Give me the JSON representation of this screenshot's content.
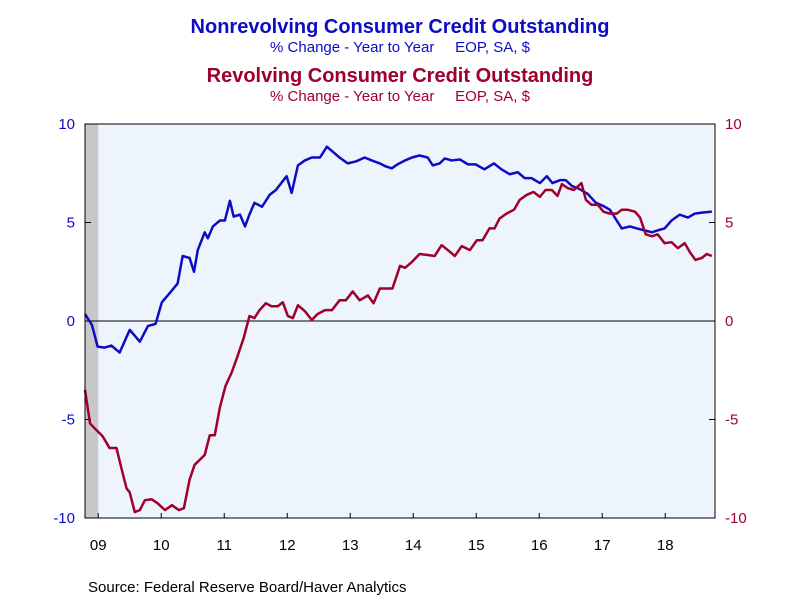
{
  "chart_data": {
    "type": "line",
    "source": "Source:  Federal Reserve Board/Haver Analytics",
    "xlim": [
      2009.29,
      2019.29
    ],
    "xticks": [
      {
        "value": 2009.5,
        "label": "09"
      },
      {
        "value": 2010.5,
        "label": "10"
      },
      {
        "value": 2011.5,
        "label": "11"
      },
      {
        "value": 2012.5,
        "label": "12"
      },
      {
        "value": 2013.5,
        "label": "13"
      },
      {
        "value": 2014.5,
        "label": "14"
      },
      {
        "value": 2015.5,
        "label": "15"
      },
      {
        "value": 2016.5,
        "label": "16"
      },
      {
        "value": 2017.5,
        "label": "17"
      },
      {
        "value": 2018.5,
        "label": "18"
      }
    ],
    "ylim": [
      -10,
      10
    ],
    "yticks": [
      -10,
      -5,
      0,
      5,
      10
    ],
    "y2lim": [
      -10,
      10
    ],
    "y2ticks": [
      -10,
      -5,
      0,
      5,
      10
    ],
    "zero_line": true,
    "shaded_regions": [
      [
        2009.29,
        2009.5
      ]
    ],
    "series": [
      {
        "name": "Nonrevolving Consumer Credit Outstanding",
        "subtitle": "% Change - Year to Year     EOP, SA, $",
        "color": "#0c0cc4",
        "axis": "y",
        "x": [
          2009.29,
          2009.4,
          2009.49,
          2009.6,
          2009.71,
          2009.84,
          2010.0,
          2010.16,
          2010.29,
          2010.41,
          2010.51,
          2010.63,
          2010.76,
          2010.84,
          2010.95,
          2011.02,
          2011.08,
          2011.19,
          2011.24,
          2011.32,
          2011.43,
          2011.51,
          2011.59,
          2011.65,
          2011.75,
          2011.83,
          2011.9,
          2011.98,
          2012.1,
          2012.22,
          2012.32,
          2012.49,
          2012.57,
          2012.67,
          2012.78,
          2012.89,
          2013.02,
          2013.13,
          2013.22,
          2013.33,
          2013.46,
          2013.59,
          2013.73,
          2013.84,
          2013.97,
          2014.06,
          2014.16,
          2014.25,
          2014.37,
          2014.48,
          2014.6,
          2014.73,
          2014.81,
          2014.92,
          2015.0,
          2015.11,
          2015.24,
          2015.37,
          2015.49,
          2015.63,
          2015.78,
          2015.9,
          2016.03,
          2016.16,
          2016.27,
          2016.38,
          2016.51,
          2016.62,
          2016.71,
          2016.83,
          2016.92,
          2017.02,
          2017.14,
          2017.27,
          2017.4,
          2017.51,
          2017.62,
          2017.7,
          2017.81,
          2017.94,
          2018.05,
          2018.17,
          2018.29,
          2018.38,
          2018.49,
          2018.6,
          2018.73,
          2018.86,
          2018.97,
          2019.08,
          2019.24
        ],
        "values": [
          0.35,
          -0.2,
          -1.3,
          -1.35,
          -1.25,
          -1.6,
          -0.45,
          -1.05,
          -0.25,
          -0.15,
          0.95,
          1.4,
          1.9,
          3.3,
          3.2,
          2.5,
          3.6,
          4.5,
          4.2,
          4.8,
          5.1,
          5.1,
          6.1,
          5.3,
          5.4,
          4.8,
          5.4,
          6.0,
          5.8,
          6.4,
          6.65,
          7.35,
          6.5,
          7.9,
          8.15,
          8.3,
          8.3,
          8.85,
          8.6,
          8.3,
          8.0,
          8.1,
          8.3,
          8.15,
          8.0,
          7.85,
          7.75,
          7.95,
          8.15,
          8.3,
          8.4,
          8.3,
          7.9,
          8.0,
          8.25,
          8.15,
          8.2,
          7.95,
          7.95,
          7.7,
          8.0,
          7.7,
          7.45,
          7.55,
          7.25,
          7.25,
          7.0,
          7.35,
          7.0,
          7.15,
          7.15,
          6.85,
          6.7,
          6.45,
          6.0,
          5.85,
          5.65,
          5.25,
          4.7,
          4.8,
          4.7,
          4.6,
          4.5,
          4.6,
          4.7,
          5.1,
          5.4,
          5.25,
          5.45,
          5.5,
          5.55
        ]
      },
      {
        "name": "Revolving Consumer Credit Outstanding",
        "subtitle": "% Change - Year to Year     EOP, SA, $",
        "color": "#a0002c",
        "axis": "y2",
        "x": [
          2009.29,
          2009.37,
          2009.46,
          2009.57,
          2009.68,
          2009.79,
          2009.87,
          2009.95,
          2010.0,
          2010.08,
          2010.16,
          2010.24,
          2010.35,
          2010.44,
          2010.56,
          2010.67,
          2010.78,
          2010.86,
          2010.95,
          2011.03,
          2011.11,
          2011.19,
          2011.27,
          2011.35,
          2011.43,
          2011.52,
          2011.62,
          2011.71,
          2011.81,
          2011.9,
          2011.98,
          2012.06,
          2012.16,
          2012.25,
          2012.35,
          2012.43,
          2012.51,
          2012.59,
          2012.67,
          2012.78,
          2012.89,
          2012.98,
          2013.1,
          2013.21,
          2013.33,
          2013.43,
          2013.54,
          2013.65,
          2013.78,
          2013.87,
          2013.97,
          2014.06,
          2014.17,
          2014.29,
          2014.37,
          2014.48,
          2014.6,
          2014.73,
          2014.84,
          2014.95,
          2015.05,
          2015.16,
          2015.27,
          2015.4,
          2015.51,
          2015.6,
          2015.71,
          2015.79,
          2015.87,
          2015.98,
          2016.1,
          2016.19,
          2016.3,
          2016.41,
          2016.51,
          2016.6,
          2016.7,
          2016.79,
          2016.86,
          2016.95,
          2017.05,
          2017.17,
          2017.24,
          2017.33,
          2017.43,
          2017.52,
          2017.62,
          2017.73,
          2017.81,
          2017.9,
          2018.02,
          2018.1,
          2018.19,
          2018.29,
          2018.38,
          2018.49,
          2018.6,
          2018.7,
          2018.81,
          2018.89,
          2018.98,
          2019.08,
          2019.16,
          2019.24
        ],
        "values": [
          -3.5,
          -5.2,
          -5.5,
          -5.85,
          -6.45,
          -6.45,
          -7.5,
          -8.5,
          -8.7,
          -9.7,
          -9.6,
          -9.1,
          -9.05,
          -9.25,
          -9.6,
          -9.35,
          -9.6,
          -9.5,
          -8.05,
          -7.3,
          -7.05,
          -6.8,
          -5.8,
          -5.8,
          -4.4,
          -3.3,
          -2.6,
          -1.8,
          -0.85,
          0.25,
          0.15,
          0.55,
          0.9,
          0.75,
          0.75,
          0.95,
          0.25,
          0.15,
          0.8,
          0.5,
          0.05,
          0.35,
          0.55,
          0.55,
          1.05,
          1.05,
          1.5,
          1.05,
          1.3,
          0.9,
          1.65,
          1.65,
          1.65,
          2.8,
          2.7,
          3.0,
          3.4,
          3.35,
          3.3,
          3.85,
          3.6,
          3.3,
          3.8,
          3.6,
          4.1,
          4.1,
          4.7,
          4.7,
          5.2,
          5.45,
          5.65,
          6.15,
          6.4,
          6.55,
          6.3,
          6.65,
          6.65,
          6.35,
          6.95,
          6.75,
          6.65,
          7.0,
          6.15,
          5.9,
          5.9,
          5.55,
          5.45,
          5.45,
          5.65,
          5.65,
          5.55,
          5.25,
          4.4,
          4.3,
          4.4,
          3.95,
          4.0,
          3.7,
          3.95,
          3.5,
          3.1,
          3.2,
          3.4,
          3.3
        ]
      }
    ]
  }
}
